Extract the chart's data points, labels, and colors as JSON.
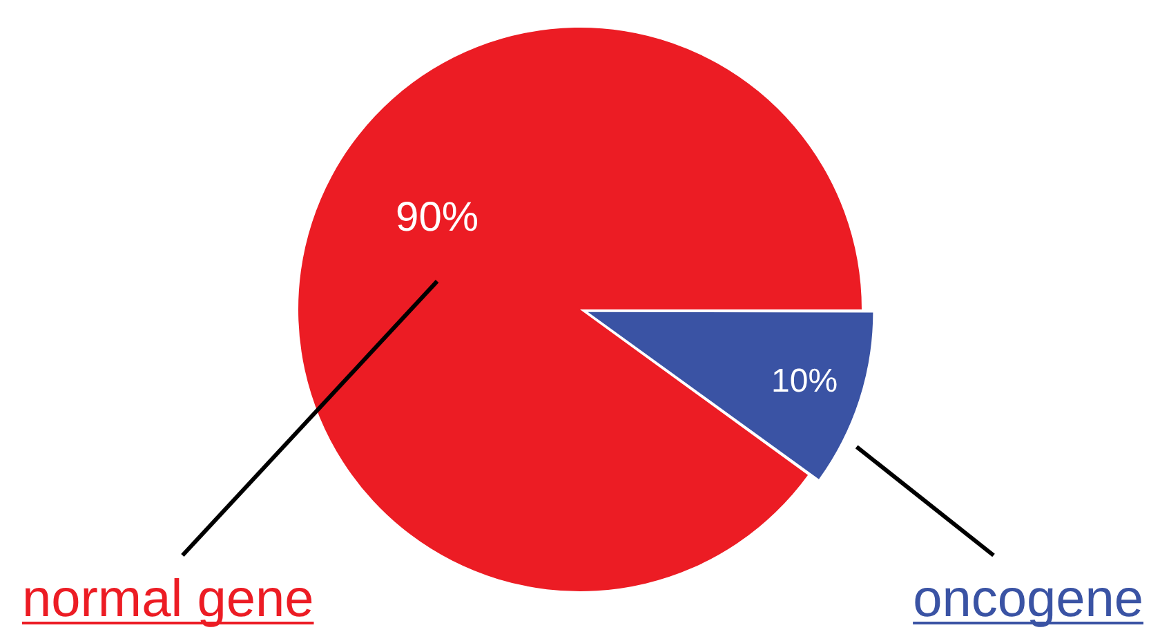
{
  "chart_data": {
    "type": "pie",
    "categories": [
      "normal gene",
      "oncogene"
    ],
    "values": [
      90,
      10
    ],
    "colors": [
      "#ec1c24",
      "#3a53a4"
    ],
    "value_labels": [
      "90%",
      "10%"
    ],
    "legend": false
  }
}
